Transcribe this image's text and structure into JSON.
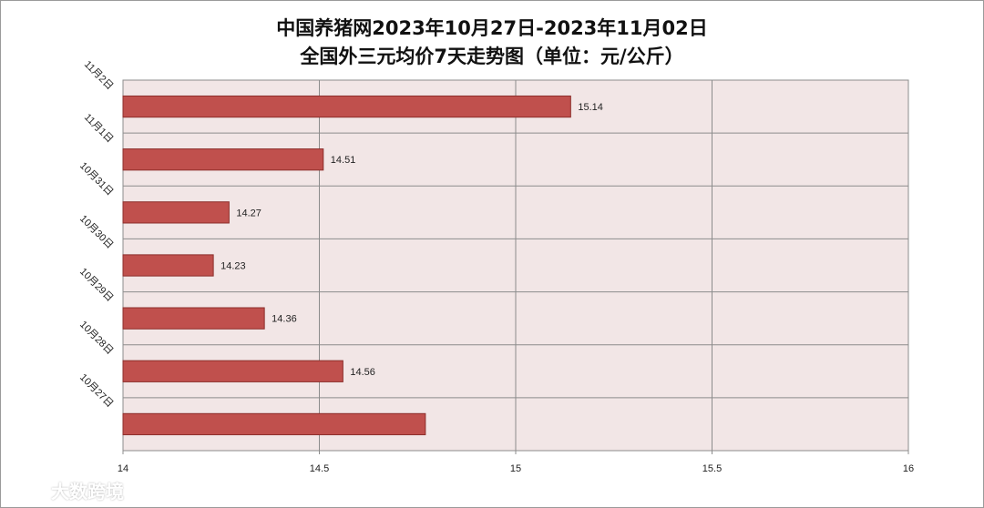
{
  "chart_data": {
    "type": "bar",
    "orientation": "horizontal",
    "title": [
      "中国养猪网2023年10月27日-2023年11月02日",
      "全国外三元均价7天走势图（单位：元/公斤）"
    ],
    "categories": [
      "11月2日",
      "11月1日",
      "10月31日",
      "10月30日",
      "10月29日",
      "10月28日",
      "10月27日"
    ],
    "values": [
      15.14,
      14.51,
      14.27,
      14.23,
      14.36,
      14.56,
      14.77
    ],
    "data_labels": [
      "15.14",
      "14.51",
      "14.27",
      "14.23",
      "14.36",
      "14.56",
      ""
    ],
    "x_ticks": [
      "14",
      "14.5",
      "15",
      "15.5",
      "16"
    ],
    "xlim": [
      14,
      16
    ],
    "grid": true,
    "colors": {
      "bar": "#c0504d",
      "bar_border": "#8c2e2b",
      "plot_bg": "#f2e6e6",
      "grid": "#8c8c8c"
    }
  },
  "watermark": {
    "text": "大数跨境",
    "icon": "logo-icon"
  }
}
